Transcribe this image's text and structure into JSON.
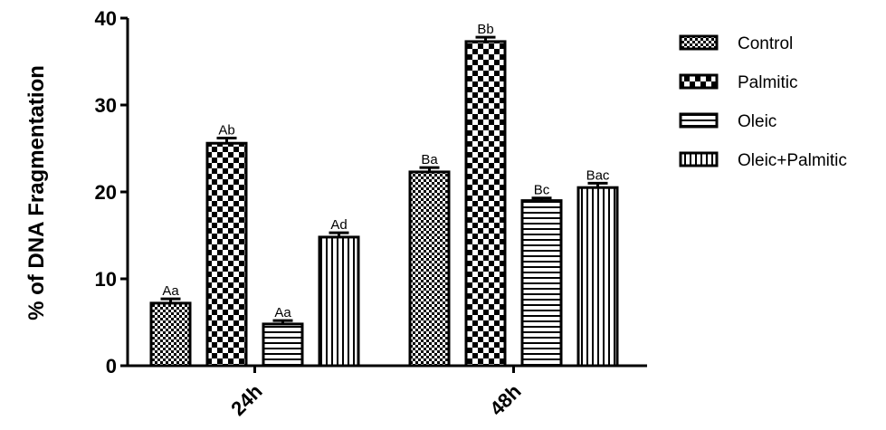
{
  "chart_data": {
    "type": "bar",
    "title": "",
    "xlabel": "",
    "ylabel": "% of DNA Fragmentation",
    "ylim": [
      0,
      40
    ],
    "yticks": [
      0,
      10,
      20,
      30,
      40
    ],
    "categories": [
      "24h",
      "48h"
    ],
    "legend_position": "right",
    "series": [
      {
        "name": "Control",
        "pattern": "fine-checker",
        "values": [
          7.2,
          22.3
        ],
        "errors": [
          0.5,
          0.5
        ],
        "labels": [
          "Aa",
          "Ba"
        ]
      },
      {
        "name": "Palmitic",
        "pattern": "large-checker",
        "values": [
          25.6,
          37.3
        ],
        "errors": [
          0.6,
          0.5
        ],
        "labels": [
          "Ab",
          "Bb"
        ]
      },
      {
        "name": "Oleic",
        "pattern": "horizontal-lines",
        "values": [
          4.8,
          19.0
        ],
        "errors": [
          0.4,
          0.3
        ],
        "labels": [
          "Aa",
          "Bc"
        ]
      },
      {
        "name": "Oleic+Palmitic",
        "pattern": "vertical-lines",
        "values": [
          14.8,
          20.5
        ],
        "errors": [
          0.5,
          0.5
        ],
        "labels": [
          "Ad",
          "Bac"
        ]
      }
    ]
  }
}
